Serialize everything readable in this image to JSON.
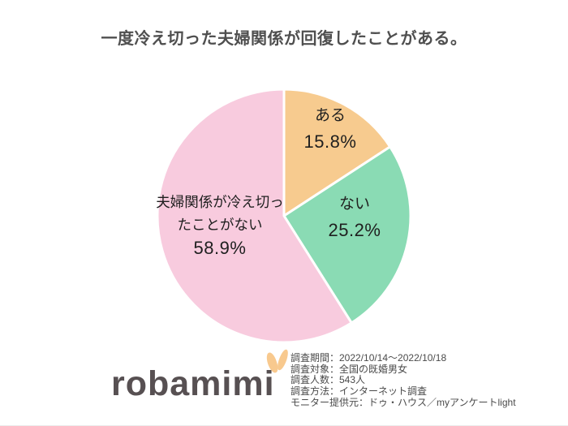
{
  "title": "一度冷え切った夫婦関係が回復したことがある。",
  "chart_data": {
    "type": "pie",
    "title": "一度冷え切った夫婦関係が回復したことがある。",
    "start_angle_deg": 0,
    "direction": "clockwise",
    "labels_position": "inside",
    "legend": "none",
    "slices": [
      {
        "label": "ある",
        "label_lines": [
          "ある"
        ],
        "pct_text": "15.8%",
        "value_pct": 15.8,
        "color": "#F7CB8F"
      },
      {
        "label": "ない",
        "label_lines": [
          "ない"
        ],
        "pct_text": "25.2%",
        "value_pct": 25.2,
        "color": "#8ADBB4"
      },
      {
        "label": "夫婦関係が冷え切ったことがない",
        "label_lines": [
          "夫婦関係が冷え切っ",
          "たことがない"
        ],
        "pct_text": "58.9%",
        "value_pct": 58.9,
        "color": "#F8CBDE"
      }
    ]
  },
  "footer": {
    "logo_text": "robamimi",
    "details": [
      "調査期間：2022/10/14～2022/10/18",
      "調査対象：全国の既婚男女",
      "調査人数：543人",
      "調査方法：インターネット調査",
      "モニター提供元：ドゥ・ハウス／myアンケートlight"
    ]
  },
  "colors": {
    "slice_orange": "#F7CB8F",
    "slice_green": "#8ADBB4",
    "slice_pink": "#F8CBDE",
    "title_text": "#4F4F4F",
    "label_text": "#1F1F1F",
    "footer_text": "#4A4A4A",
    "logo_text": "#575052",
    "logo_ears": "#F8C98E",
    "slice_border": "#FFFFFF"
  }
}
